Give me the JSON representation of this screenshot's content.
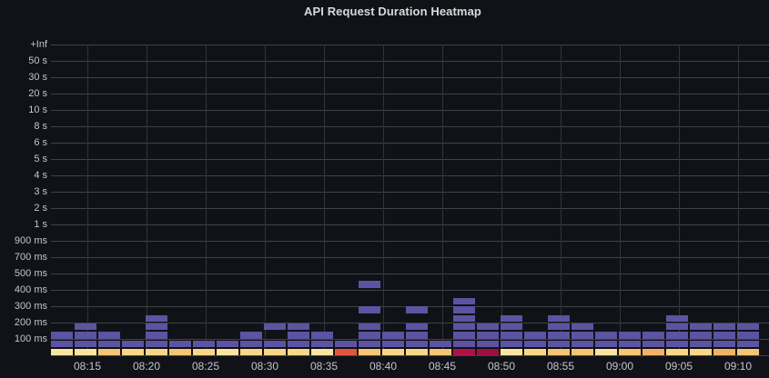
{
  "title": "API Request Duration Heatmap",
  "colors": {
    "background": "#111217",
    "h_grid": "#3E424A",
    "v_grid": "#313439",
    "axis_text": "#C3C5CC",
    "title_text": "#D8D9DA"
  },
  "chart_data": {
    "type": "heatmap",
    "title": "API Request Duration Heatmap",
    "y_axis": {
      "labels_top_to_bottom": [
        "+Inf",
        "50 s",
        "30 s",
        "20 s",
        "10 s",
        "8 s",
        "6 s",
        "5 s",
        "4 s",
        "3 s",
        "2 s",
        "1 s",
        "900 ms",
        "700 ms",
        "500 ms",
        "400 ms",
        "300 ms",
        "200 ms",
        "100 ms"
      ]
    },
    "x_axis": {
      "tick_labels": [
        "08:15",
        "08:20",
        "08:25",
        "08:30",
        "08:35",
        "08:40",
        "08:45",
        "08:50",
        "08:55",
        "09:00",
        "09:05",
        "09:10"
      ],
      "minutes_per_column": 2
    },
    "palette": {
      "purple": "#5C54A2",
      "pale": "#FBE59E",
      "light_gold": "#F9D787",
      "gold": "#F7C572",
      "orange": "#F4B266",
      "red": "#E1573E",
      "crimson": "#B01247",
      "crimson_dark": "#A00D43"
    },
    "columns": [
      {
        "purple_rows": [
          1,
          2
        ],
        "base": "pale"
      },
      {
        "purple_rows": [
          1,
          2,
          3
        ],
        "base": "pale"
      },
      {
        "purple_rows": [
          1,
          2
        ],
        "base": "gold"
      },
      {
        "purple_rows": [
          1
        ],
        "base": "light_gold"
      },
      {
        "purple_rows": [
          1,
          2,
          3,
          4
        ],
        "base": "light_gold"
      },
      {
        "purple_rows": [
          1
        ],
        "base": "gold"
      },
      {
        "purple_rows": [
          1
        ],
        "base": "light_gold"
      },
      {
        "purple_rows": [
          1
        ],
        "base": "pale"
      },
      {
        "purple_rows": [
          1,
          2
        ],
        "base": "light_gold"
      },
      {
        "purple_rows": [
          1,
          3
        ],
        "base": "light_gold"
      },
      {
        "purple_rows": [
          1,
          2,
          3
        ],
        "base": "light_gold"
      },
      {
        "purple_rows": [
          1,
          2
        ],
        "base": "pale"
      },
      {
        "purple_rows": [
          1
        ],
        "base": "red"
      },
      {
        "purple_rows": [
          1,
          2,
          3,
          5,
          8
        ],
        "base": "gold"
      },
      {
        "purple_rows": [
          1,
          2
        ],
        "base": "light_gold"
      },
      {
        "purple_rows": [
          1,
          2,
          3,
          5
        ],
        "base": "light_gold"
      },
      {
        "purple_rows": [
          1
        ],
        "base": "gold"
      },
      {
        "purple_rows": [
          1,
          2,
          3,
          4,
          5,
          6
        ],
        "base": "crimson"
      },
      {
        "purple_rows": [
          1,
          2,
          3
        ],
        "base": "crimson_dark"
      },
      {
        "purple_rows": [
          1,
          2,
          3,
          4
        ],
        "base": "pale"
      },
      {
        "purple_rows": [
          1,
          2
        ],
        "base": "light_gold"
      },
      {
        "purple_rows": [
          1,
          2,
          3,
          4
        ],
        "base": "gold"
      },
      {
        "purple_rows": [
          1,
          2,
          3
        ],
        "base": "gold"
      },
      {
        "purple_rows": [
          1,
          2
        ],
        "base": "pale"
      },
      {
        "purple_rows": [
          1,
          2
        ],
        "base": "gold"
      },
      {
        "purple_rows": [
          1,
          2
        ],
        "base": "orange"
      },
      {
        "purple_rows": [
          1,
          2,
          3,
          4
        ],
        "base": "light_gold"
      },
      {
        "purple_rows": [
          1,
          2,
          3
        ],
        "base": "light_gold"
      },
      {
        "purple_rows": [
          1,
          2,
          3
        ],
        "base": "orange"
      },
      {
        "purple_rows": [
          1,
          2,
          3
        ],
        "base": "gold"
      }
    ]
  }
}
